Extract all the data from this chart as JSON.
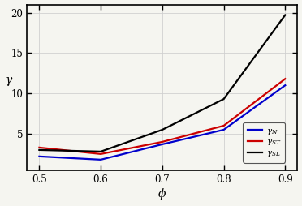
{
  "phi": [
    0.5,
    0.6,
    0.7,
    0.8,
    0.9
  ],
  "gamma_N": [
    2.2,
    1.8,
    3.7,
    5.5,
    11.0
  ],
  "gamma_ST": [
    3.3,
    2.5,
    4.0,
    6.0,
    11.8
  ],
  "gamma_SL": [
    3.0,
    2.8,
    5.5,
    9.3,
    19.7
  ],
  "color_N": "#0000cc",
  "color_ST": "#cc0000",
  "color_SL": "#000000",
  "xlabel": "$\\phi$",
  "ylabel": "$\\gamma$",
  "label_N": "$\\gamma_N$",
  "label_ST": "$\\gamma_{ST}$",
  "label_SL": "$\\gamma_{SL}$",
  "xlim": [
    0.48,
    0.92
  ],
  "ylim": [
    0.5,
    21
  ],
  "xticks": [
    0.5,
    0.6,
    0.7,
    0.8,
    0.9
  ],
  "yticks": [
    5,
    10,
    15,
    20
  ],
  "linewidth": 1.6,
  "grid_color": "#d0d0d0",
  "spine_color": "#000000",
  "bg_color": "#f5f5f0"
}
